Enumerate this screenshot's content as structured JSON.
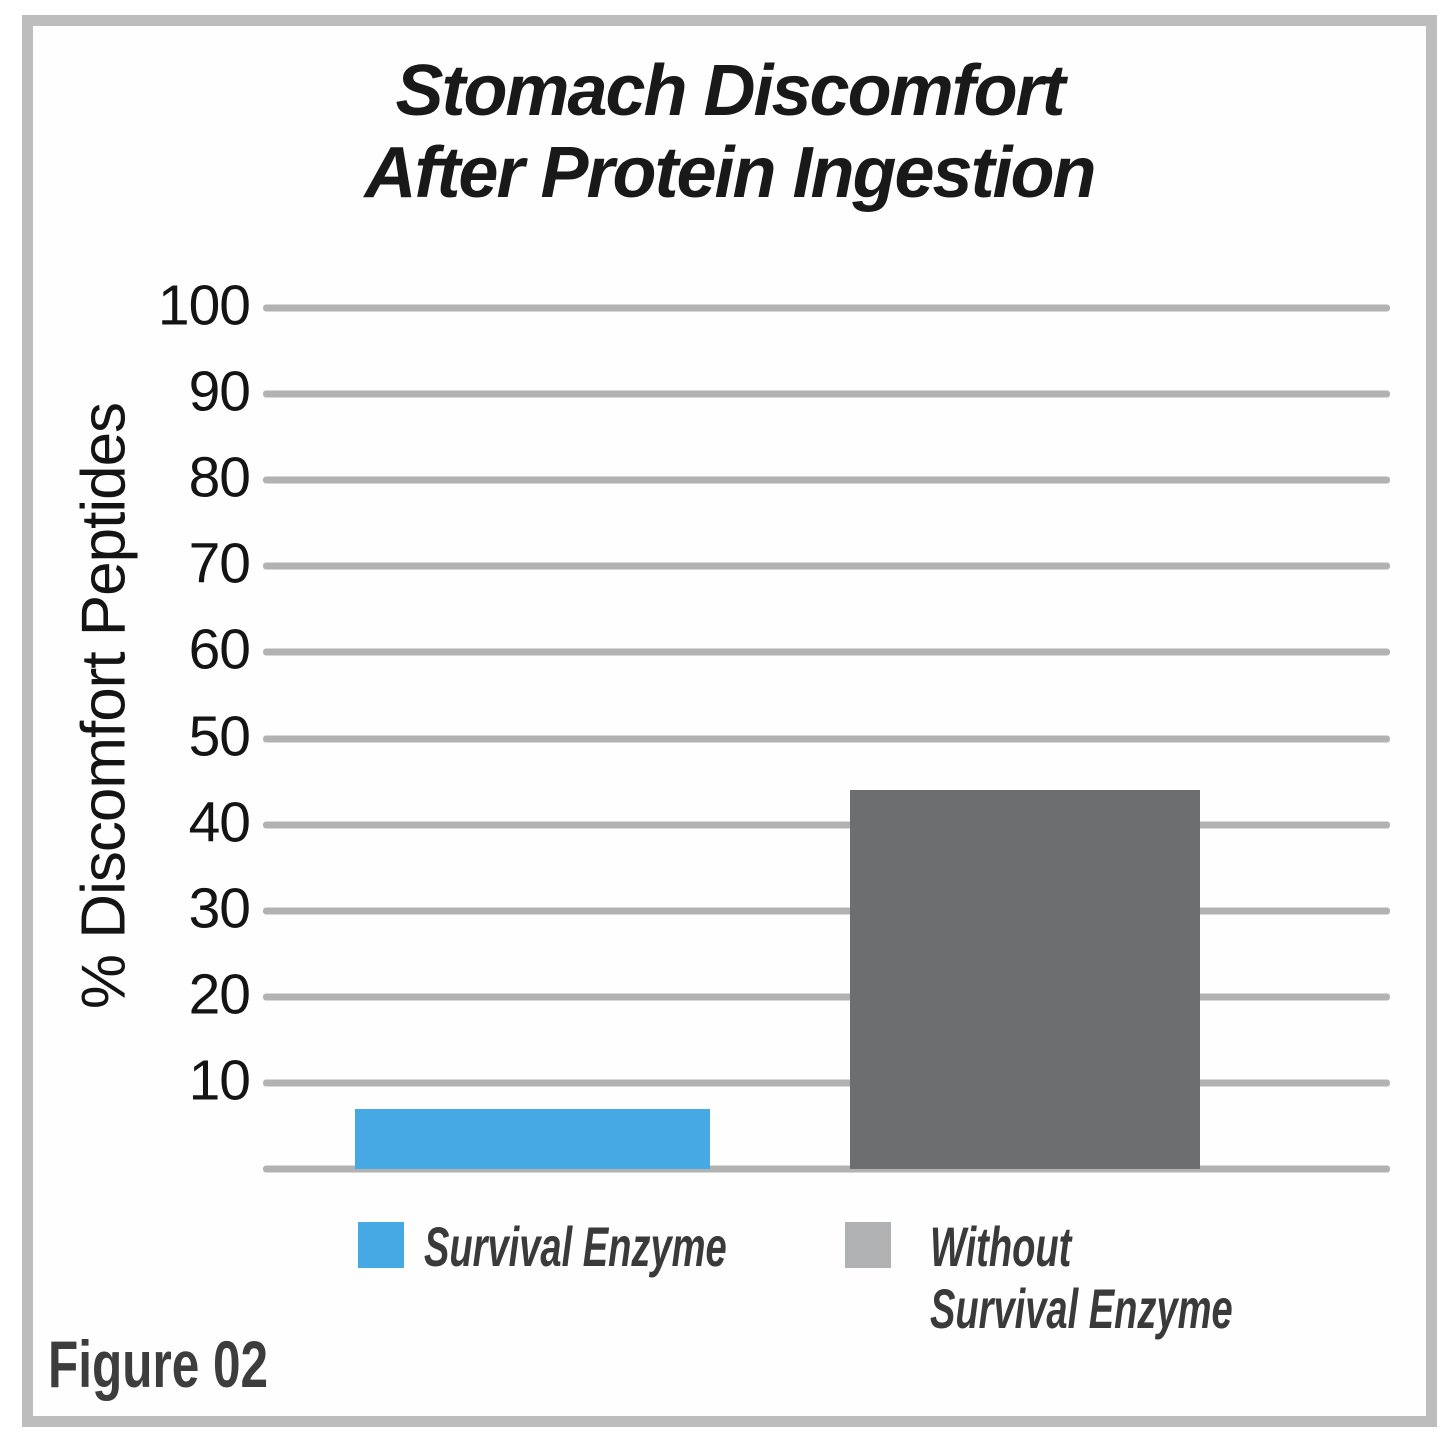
{
  "figure_label": "Figure 02",
  "chart_data": {
    "type": "bar",
    "title": "Stomach Discomfort After Protein Ingestion",
    "title_lines": [
      "Stomach Discomfort",
      "After Protein Ingestion"
    ],
    "xlabel": "",
    "ylabel": "% Discomfort Peptides",
    "ylim": [
      0,
      100
    ],
    "yticks": [
      100,
      90,
      80,
      70,
      60,
      50,
      40,
      30,
      20,
      10
    ],
    "grid": "horizontal",
    "legend_position": "bottom",
    "categories": [
      "Survival Enzyme",
      "Without Survival Enzyme"
    ],
    "series": [
      {
        "name": "Survival Enzyme",
        "value": 7,
        "color": "#47a9e4",
        "legend_swatch_color": "#47a9e4",
        "legend_lines": [
          "Survival Enzyme"
        ]
      },
      {
        "name": "Without Survival Enzyme",
        "value": 44,
        "color": "#6d6e70",
        "legend_swatch_color": "#b0b1b3",
        "legend_lines": [
          "Without",
          "Survival Enzyme"
        ]
      }
    ]
  },
  "colors": {
    "bar_blue": "#47a9e4",
    "bar_gray": "#6d6e70",
    "legend_gray_swatch": "#b0b1b3",
    "gridline": "#b2b2b2",
    "frame_border": "#bdbdbd",
    "title_text": "#191919",
    "axis_text": "#141414",
    "legend_text": "#3a3a3a",
    "figure_label_text": "#3d3d3d"
  }
}
